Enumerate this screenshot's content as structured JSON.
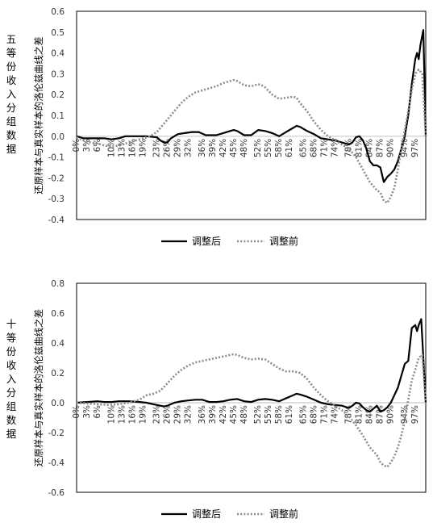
{
  "chart_data": [
    {
      "type": "line",
      "row_label": "五等份收入分组数据",
      "ylabel": "还原样本与真实样本的洛伦兹曲线之差",
      "ylim": [
        -0.4,
        0.6
      ],
      "yticks": [
        "0.6",
        "0.5",
        "0.4",
        "0.3",
        "0.2",
        "0.1",
        "0.0",
        "-0.1",
        "-0.2",
        "-0.3",
        "-0.4"
      ],
      "xlim": [
        0,
        100
      ],
      "xticks": [
        "0%",
        "3%",
        "6%",
        "10%",
        "13%",
        "16%",
        "19%",
        "23%",
        "26%",
        "29%",
        "32%",
        "36%",
        "39%",
        "42%",
        "45%",
        "48%",
        "52%",
        "55%",
        "58%",
        "61%",
        "65%",
        "68%",
        "71%",
        "74%",
        "78%",
        "81%",
        "84%",
        "87%",
        "90%",
        "94%",
        "97%"
      ],
      "legend": [
        "调整后",
        "调整前"
      ],
      "series": [
        {
          "name": "调整后",
          "style": "solid",
          "points": [
            [
              0,
              0
            ],
            [
              2,
              -0.01
            ],
            [
              5,
              -0.01
            ],
            [
              8,
              -0.01
            ],
            [
              10,
              -0.015
            ],
            [
              12,
              -0.01
            ],
            [
              14,
              0
            ],
            [
              18,
              0
            ],
            [
              20,
              0
            ],
            [
              23,
              -0.005
            ],
            [
              24,
              -0.02
            ],
            [
              25,
              -0.03
            ],
            [
              26,
              -0.03
            ],
            [
              27,
              -0.01
            ],
            [
              29,
              0.01
            ],
            [
              31,
              0.015
            ],
            [
              33,
              0.02
            ],
            [
              35,
              0.02
            ],
            [
              37,
              0.005
            ],
            [
              40,
              0.005
            ],
            [
              42,
              0.015
            ],
            [
              44,
              0.025
            ],
            [
              45,
              0.03
            ],
            [
              46,
              0.025
            ],
            [
              48,
              0.005
            ],
            [
              50,
              0.005
            ],
            [
              52,
              0.03
            ],
            [
              54,
              0.025
            ],
            [
              56,
              0.015
            ],
            [
              58,
              0
            ],
            [
              60,
              0.02
            ],
            [
              62,
              0.04
            ],
            [
              63,
              0.05
            ],
            [
              64,
              0.045
            ],
            [
              66,
              0.025
            ],
            [
              68,
              0.01
            ],
            [
              70,
              -0.01
            ],
            [
              72,
              -0.015
            ],
            [
              74,
              -0.02
            ],
            [
              76,
              -0.03
            ],
            [
              78,
              -0.04
            ],
            [
              79,
              -0.03
            ],
            [
              80,
              -0.005
            ],
            [
              81,
              0
            ],
            [
              82,
              -0.02
            ],
            [
              83,
              -0.06
            ],
            [
              84,
              -0.12
            ],
            [
              85,
              -0.14
            ],
            [
              86,
              -0.14
            ],
            [
              87,
              -0.15
            ],
            [
              88,
              -0.22
            ],
            [
              89,
              -0.195
            ],
            [
              90,
              -0.18
            ],
            [
              91,
              -0.16
            ],
            [
              92,
              -0.12
            ],
            [
              93,
              -0.06
            ],
            [
              94,
              0
            ],
            [
              95,
              0.1
            ],
            [
              96,
              0.25
            ],
            [
              97,
              0.37
            ],
            [
              97.5,
              0.4
            ],
            [
              98,
              0.37
            ],
            [
              98.5,
              0.44
            ],
            [
              99.3,
              0.51
            ],
            [
              100,
              0
            ]
          ]
        },
        {
          "name": "调整前",
          "style": "dotted",
          "points": [
            [
              0,
              -0.005
            ],
            [
              2,
              -0.02
            ],
            [
              4,
              -0.03
            ],
            [
              6,
              -0.035
            ],
            [
              8,
              -0.045
            ],
            [
              10,
              -0.05
            ],
            [
              12,
              -0.045
            ],
            [
              14,
              -0.035
            ],
            [
              16,
              -0.025
            ],
            [
              18,
              -0.015
            ],
            [
              20,
              -0.005
            ],
            [
              21,
              0
            ],
            [
              23,
              0.02
            ],
            [
              25,
              0.06
            ],
            [
              28,
              0.12
            ],
            [
              30,
              0.16
            ],
            [
              32,
              0.19
            ],
            [
              34,
              0.21
            ],
            [
              36,
              0.22
            ],
            [
              38,
              0.23
            ],
            [
              40,
              0.24
            ],
            [
              42,
              0.255
            ],
            [
              44,
              0.265
            ],
            [
              45,
              0.27
            ],
            [
              46,
              0.265
            ],
            [
              48,
              0.245
            ],
            [
              50,
              0.24
            ],
            [
              52,
              0.25
            ],
            [
              53,
              0.245
            ],
            [
              54,
              0.235
            ],
            [
              56,
              0.2
            ],
            [
              58,
              0.18
            ],
            [
              60,
              0.185
            ],
            [
              62,
              0.19
            ],
            [
              63,
              0.185
            ],
            [
              64,
              0.16
            ],
            [
              66,
              0.12
            ],
            [
              68,
              0.07
            ],
            [
              70,
              0.03
            ],
            [
              72,
              0
            ],
            [
              74,
              -0.02
            ],
            [
              76,
              -0.04
            ],
            [
              78,
              -0.06
            ],
            [
              80,
              -0.1
            ],
            [
              82,
              -0.16
            ],
            [
              84,
              -0.22
            ],
            [
              85,
              -0.24
            ],
            [
              86,
              -0.26
            ],
            [
              87,
              -0.27
            ],
            [
              88,
              -0.31
            ],
            [
              89,
              -0.32
            ],
            [
              90,
              -0.29
            ],
            [
              91,
              -0.25
            ],
            [
              92,
              -0.16
            ],
            [
              93,
              -0.06
            ],
            [
              94,
              0.03
            ],
            [
              95,
              0.12
            ],
            [
              96,
              0.22
            ],
            [
              97,
              0.3
            ],
            [
              98,
              0.32
            ],
            [
              99,
              0.3
            ],
            [
              100,
              0
            ]
          ]
        }
      ]
    },
    {
      "type": "line",
      "row_label": "十等份收入分组数据",
      "ylabel": "还原样本与真实样本的洛伦兹曲线之差",
      "ylim": [
        -0.6,
        0.8
      ],
      "yticks": [
        "0.8",
        "0.6",
        "0.4",
        "0.2",
        "0.0",
        "-0.2",
        "-0.4",
        "-0.6"
      ],
      "xlim": [
        0,
        100
      ],
      "xticks": [
        "0%",
        "3%",
        "6%",
        "10%",
        "13%",
        "16%",
        "19%",
        "23%",
        "26%",
        "29%",
        "32%",
        "36%",
        "39%",
        "42%",
        "45%",
        "48%",
        "52%",
        "55%",
        "58%",
        "61%",
        "65%",
        "68%",
        "71%",
        "74%",
        "78%",
        "81%",
        "84%",
        "87%",
        "90%",
        "94%",
        "97%"
      ],
      "legend": [
        "调整后",
        "调整前"
      ],
      "series": [
        {
          "name": "调整后",
          "style": "solid",
          "points": [
            [
              0,
              0
            ],
            [
              3,
              0.005
            ],
            [
              6,
              0.01
            ],
            [
              8,
              0.005
            ],
            [
              10,
              0.005
            ],
            [
              12,
              0.01
            ],
            [
              15,
              0.01
            ],
            [
              18,
              0.005
            ],
            [
              20,
              0
            ],
            [
              22,
              -0.01
            ],
            [
              24,
              -0.02
            ],
            [
              25,
              -0.025
            ],
            [
              26,
              -0.02
            ],
            [
              28,
              0
            ],
            [
              30,
              0.01
            ],
            [
              32,
              0.015
            ],
            [
              34,
              0.02
            ],
            [
              36,
              0.02
            ],
            [
              38,
              0.005
            ],
            [
              40,
              0.005
            ],
            [
              42,
              0.01
            ],
            [
              44,
              0.02
            ],
            [
              46,
              0.025
            ],
            [
              48,
              0.01
            ],
            [
              50,
              0.005
            ],
            [
              52,
              0.02
            ],
            [
              54,
              0.025
            ],
            [
              56,
              0.02
            ],
            [
              58,
              0.01
            ],
            [
              60,
              0.03
            ],
            [
              62,
              0.05
            ],
            [
              63,
              0.06
            ],
            [
              64,
              0.055
            ],
            [
              66,
              0.04
            ],
            [
              68,
              0.02
            ],
            [
              70,
              0
            ],
            [
              72,
              -0.01
            ],
            [
              74,
              -0.015
            ],
            [
              76,
              -0.02
            ],
            [
              78,
              -0.035
            ],
            [
              79,
              -0.02
            ],
            [
              80,
              0
            ],
            [
              81,
              -0.005
            ],
            [
              82,
              -0.03
            ],
            [
              83,
              -0.05
            ],
            [
              84,
              -0.06
            ],
            [
              85,
              -0.04
            ],
            [
              86,
              -0.02
            ],
            [
              87,
              -0.06
            ],
            [
              88,
              -0.05
            ],
            [
              89,
              -0.03
            ],
            [
              90,
              0
            ],
            [
              91,
              0.05
            ],
            [
              92,
              0.1
            ],
            [
              93,
              0.18
            ],
            [
              94,
              0.26
            ],
            [
              95,
              0.28
            ],
            [
              96,
              0.5
            ],
            [
              97,
              0.52
            ],
            [
              97.5,
              0.48
            ],
            [
              98,
              0.52
            ],
            [
              98.7,
              0.56
            ],
            [
              100,
              0
            ]
          ]
        },
        {
          "name": "调整前",
          "style": "dotted",
          "points": [
            [
              0,
              0
            ],
            [
              3,
              -0.005
            ],
            [
              6,
              -0.01
            ],
            [
              9,
              -0.015
            ],
            [
              12,
              -0.01
            ],
            [
              15,
              0
            ],
            [
              18,
              0.02
            ],
            [
              20,
              0.05
            ],
            [
              22,
              0.06
            ],
            [
              24,
              0.08
            ],
            [
              26,
              0.13
            ],
            [
              28,
              0.18
            ],
            [
              30,
              0.22
            ],
            [
              32,
              0.25
            ],
            [
              34,
              0.27
            ],
            [
              36,
              0.28
            ],
            [
              38,
              0.29
            ],
            [
              40,
              0.3
            ],
            [
              42,
              0.31
            ],
            [
              44,
              0.32
            ],
            [
              45,
              0.325
            ],
            [
              46,
              0.32
            ],
            [
              48,
              0.3
            ],
            [
              50,
              0.29
            ],
            [
              52,
              0.295
            ],
            [
              54,
              0.29
            ],
            [
              56,
              0.26
            ],
            [
              58,
              0.23
            ],
            [
              60,
              0.21
            ],
            [
              62,
              0.21
            ],
            [
              64,
              0.2
            ],
            [
              66,
              0.16
            ],
            [
              68,
              0.1
            ],
            [
              70,
              0.05
            ],
            [
              72,
              0.01
            ],
            [
              74,
              -0.02
            ],
            [
              76,
              -0.05
            ],
            [
              78,
              -0.09
            ],
            [
              80,
              -0.15
            ],
            [
              82,
              -0.22
            ],
            [
              84,
              -0.3
            ],
            [
              86,
              -0.35
            ],
            [
              87,
              -0.4
            ],
            [
              88,
              -0.42
            ],
            [
              89,
              -0.43
            ],
            [
              90,
              -0.4
            ],
            [
              91,
              -0.36
            ],
            [
              92,
              -0.3
            ],
            [
              93,
              -0.22
            ],
            [
              94,
              -0.12
            ],
            [
              95,
              0.02
            ],
            [
              96,
              0.15
            ],
            [
              97,
              0.22
            ],
            [
              98,
              0.3
            ],
            [
              99,
              0.32
            ],
            [
              100,
              0
            ]
          ]
        }
      ]
    }
  ]
}
